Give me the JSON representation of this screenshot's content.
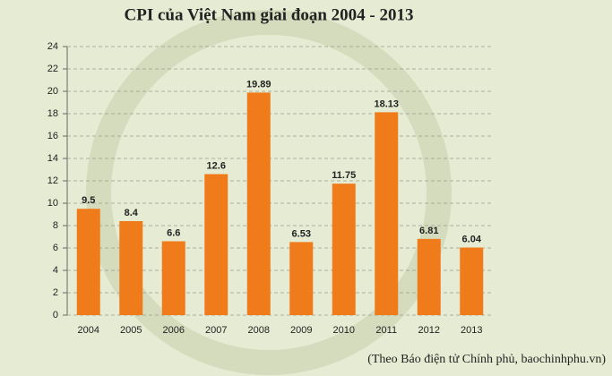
{
  "chart_data": {
    "type": "bar",
    "title": "CPI của Việt Nam giai đoạn 2004 - 2013",
    "categories": [
      "2004",
      "2005",
      "2006",
      "2007",
      "2008",
      "2009",
      "2010",
      "2011",
      "2012",
      "2013"
    ],
    "values": [
      9.5,
      8.4,
      6.6,
      12.6,
      19.89,
      6.53,
      11.75,
      18.13,
      6.81,
      6.04
    ],
    "color": "#f07b1a",
    "ylim": [
      0,
      24
    ],
    "yticks": [
      0,
      2,
      4,
      6,
      8,
      10,
      12,
      14,
      16,
      18,
      20,
      22,
      24
    ],
    "grid": true,
    "source": "(Theo Báo điện tử Chính phủ, baochinhphu.vn)"
  }
}
